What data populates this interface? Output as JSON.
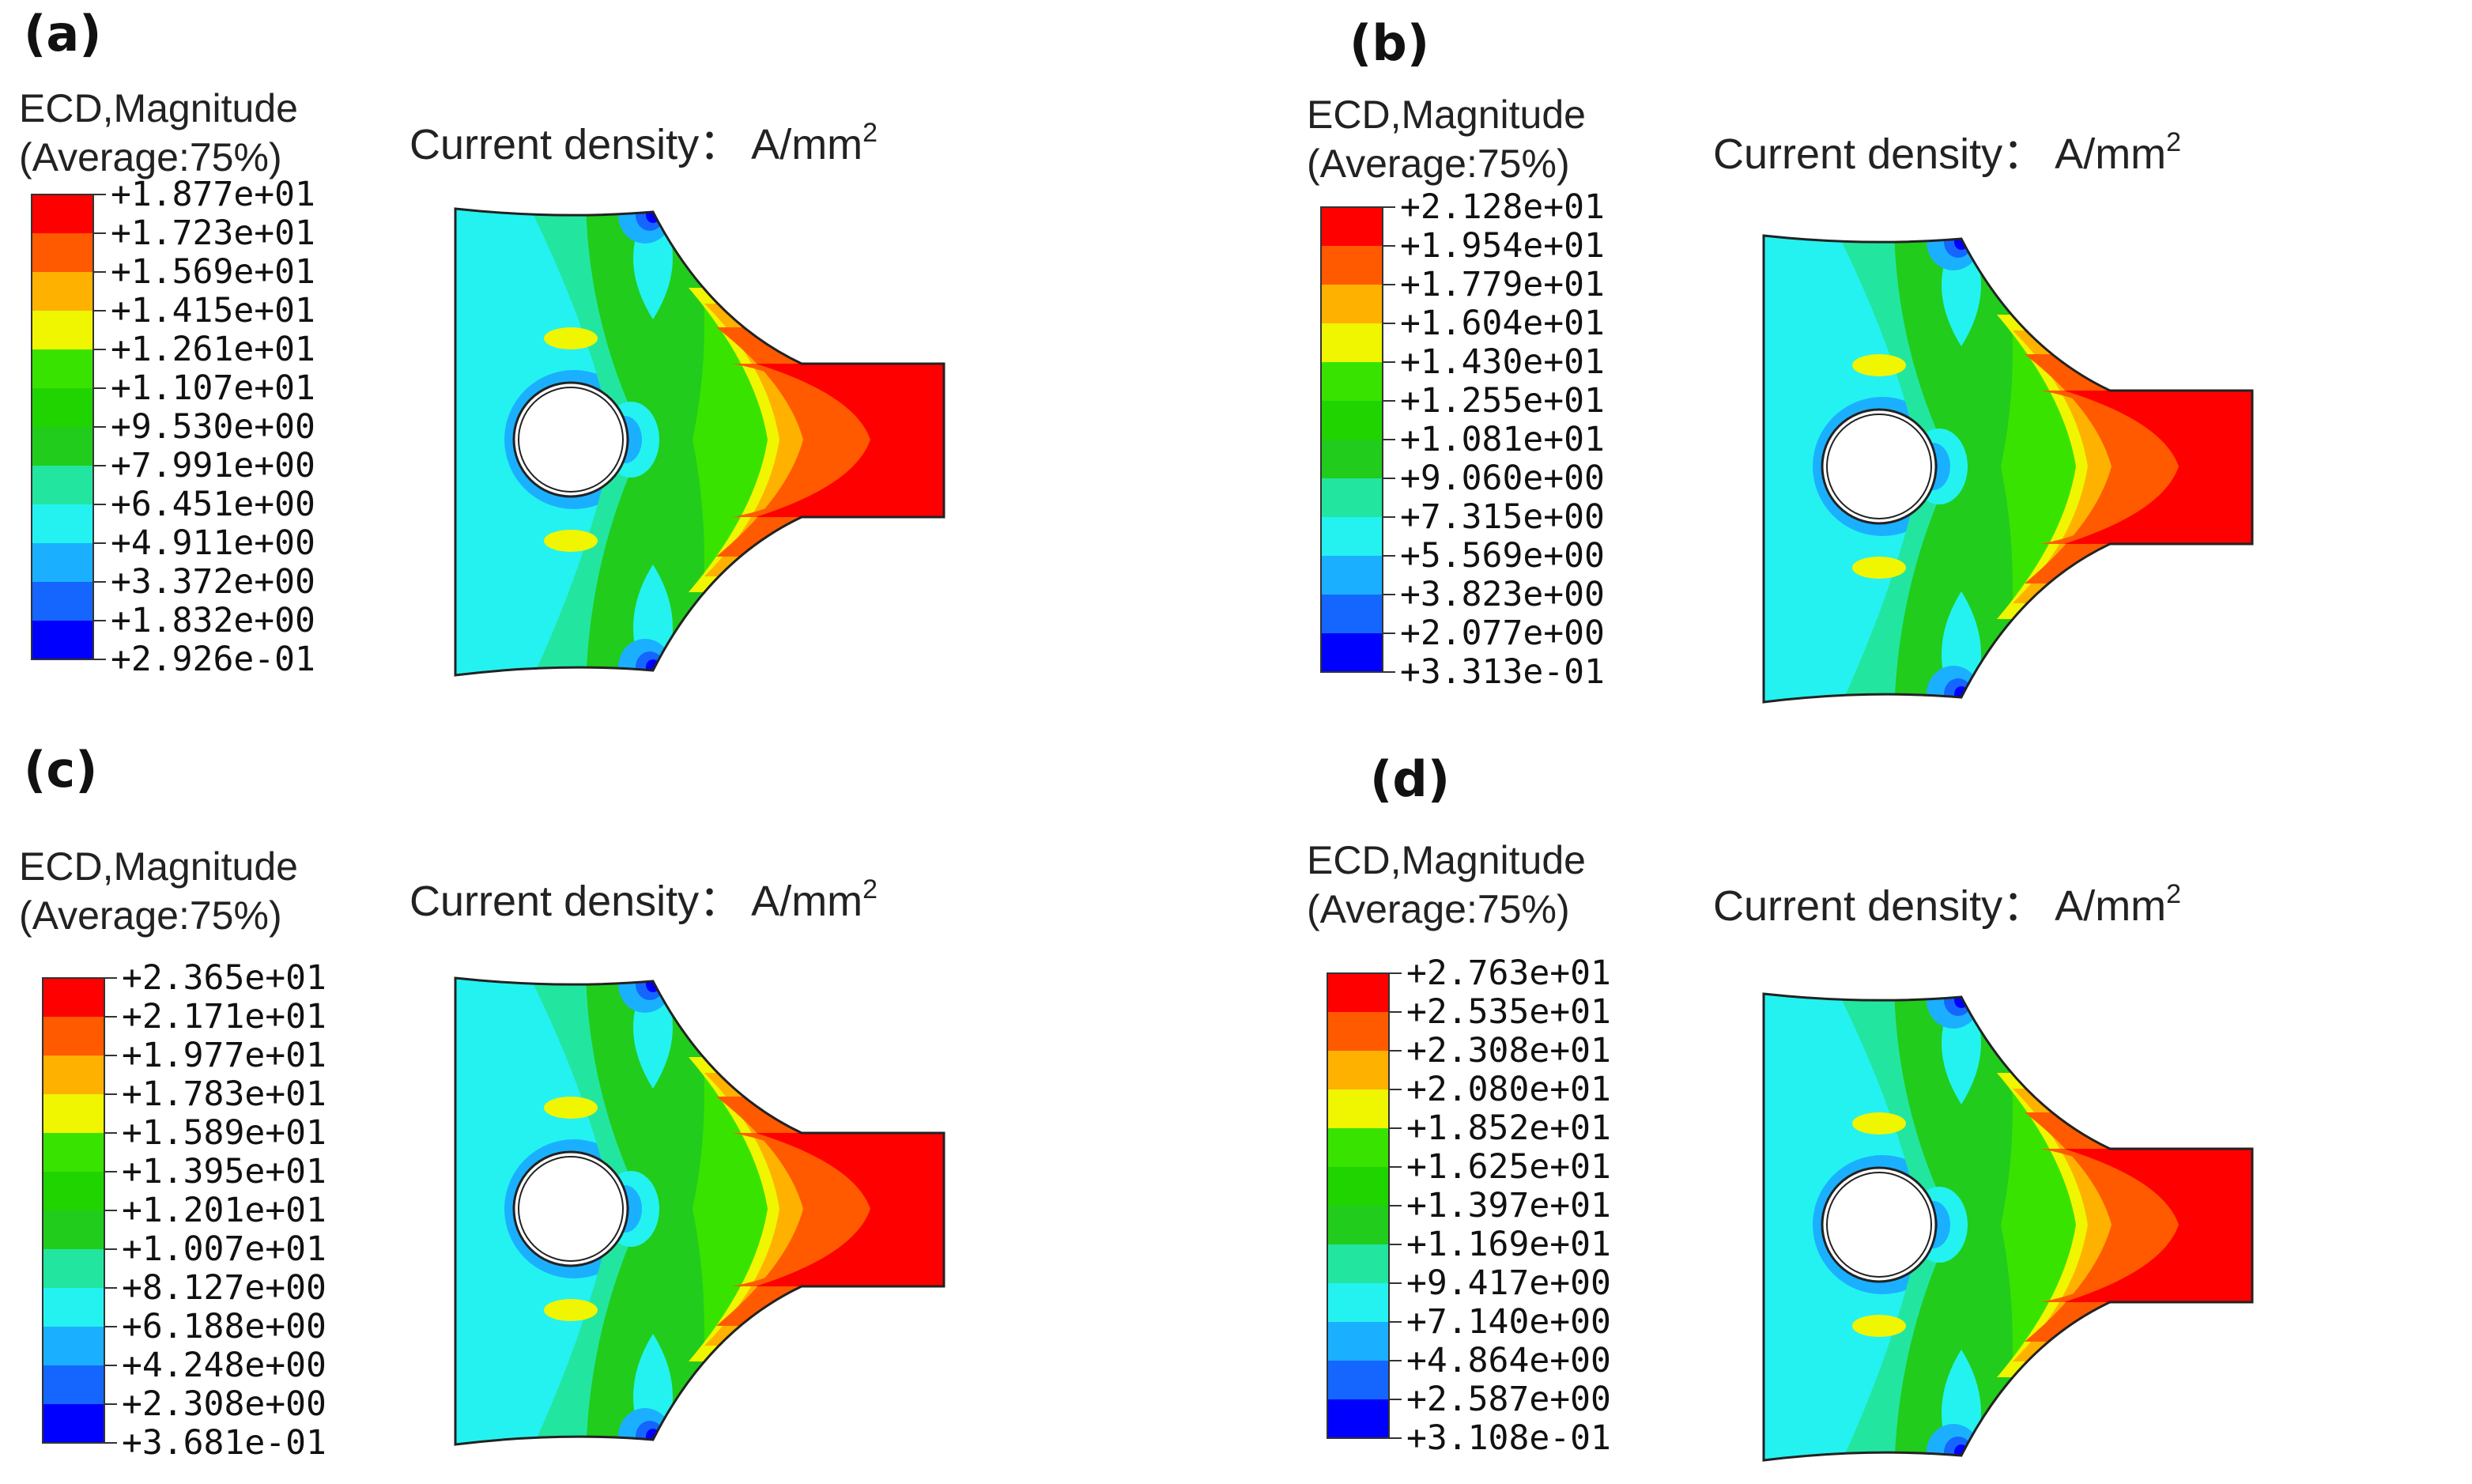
{
  "common": {
    "legend_title": "ECD,Magnitude",
    "legend_subtitle": "(Average:75%)",
    "plot_title": "Current density： A/mm",
    "plot_title_superscript": "2",
    "band_colors": [
      "#ff0000",
      "#ff5a00",
      "#ffb100",
      "#f0f500",
      "#39e300",
      "#20d400",
      "#21cc1c",
      "#22e6a0",
      "#24f2f0",
      "#1ab0ff",
      "#1466ff",
      "#0000ff"
    ]
  },
  "panels": [
    {
      "label": "(a)",
      "ticks": [
        "+1.877e+01",
        "+1.723e+01",
        "+1.569e+01",
        "+1.415e+01",
        "+1.261e+01",
        "+1.107e+01",
        "+9.530e+00",
        "+7.991e+00",
        "+6.451e+00",
        "+4.911e+00",
        "+3.372e+00",
        "+1.832e+00",
        "+2.926e-01"
      ]
    },
    {
      "label": "(b)",
      "ticks": [
        "+2.128e+01",
        "+1.954e+01",
        "+1.779e+01",
        "+1.604e+01",
        "+1.430e+01",
        "+1.255e+01",
        "+1.081e+01",
        "+9.060e+00",
        "+7.315e+00",
        "+5.569e+00",
        "+3.823e+00",
        "+2.077e+00",
        "+3.313e-01"
      ]
    },
    {
      "label": "(c)",
      "ticks": [
        "+2.365e+01",
        "+2.171e+01",
        "+1.977e+01",
        "+1.783e+01",
        "+1.589e+01",
        "+1.395e+01",
        "+1.201e+01",
        "+1.007e+01",
        "+8.127e+00",
        "+6.188e+00",
        "+4.248e+00",
        "+2.308e+00",
        "+3.681e-01"
      ]
    },
    {
      "label": "(d)",
      "ticks": [
        "+2.763e+01",
        "+2.535e+01",
        "+2.308e+01",
        "+2.080e+01",
        "+1.852e+01",
        "+1.625e+01",
        "+1.397e+01",
        "+1.169e+01",
        "+9.417e+00",
        "+7.140e+00",
        "+4.864e+00",
        "+2.587e+00",
        "+3.108e-01"
      ]
    }
  ]
}
